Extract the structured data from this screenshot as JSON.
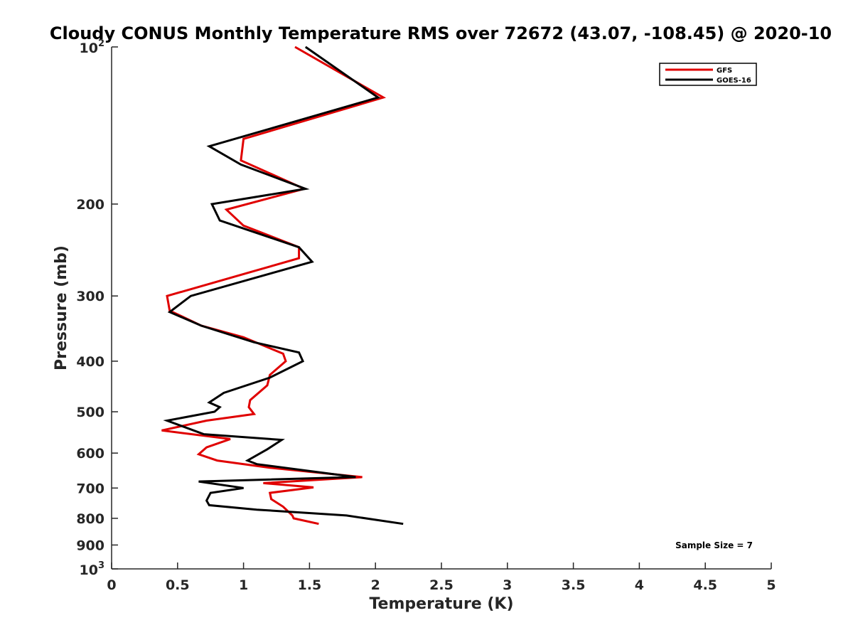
{
  "chart_data": {
    "type": "line",
    "title": "Cloudy CONUS Monthly Temperature RMS over 72672 (43.07, -108.45) @ 2020-10",
    "xlabel": "Temperature (K)",
    "ylabel": "Pressure (mb)",
    "xlim": [
      0,
      5
    ],
    "ylim": [
      100,
      1000
    ],
    "y_scale": "log",
    "y_reversed": true,
    "x_ticks": [
      "0",
      "0.5",
      "1",
      "1.5",
      "2",
      "2.5",
      "3",
      "3.5",
      "4",
      "4.5",
      "5"
    ],
    "x_tick_values": [
      0,
      0.5,
      1,
      1.5,
      2,
      2.5,
      3,
      3.5,
      4,
      4.5,
      5
    ],
    "y_ticks_plain": [
      {
        "label": "200",
        "value": 200
      },
      {
        "label": "300",
        "value": 300
      },
      {
        "label": "400",
        "value": 400
      },
      {
        "label": "500",
        "value": 500
      },
      {
        "label": "600",
        "value": 600
      },
      {
        "label": "700",
        "value": 700
      },
      {
        "label": "800",
        "value": 800
      },
      {
        "label": "900",
        "value": 900
      }
    ],
    "y_ticks_power": [
      {
        "base": "10",
        "exp": "2",
        "value": 100
      },
      {
        "base": "10",
        "exp": "3",
        "value": 1000
      }
    ],
    "grid": false,
    "legend_position": "top-right",
    "annotation": "Sample Size = 7",
    "series": [
      {
        "name": "GFS",
        "color": "#e00000",
        "points": [
          [
            1.39,
            100
          ],
          [
            2.06,
            125
          ],
          [
            1.0,
            150
          ],
          [
            0.98,
            165
          ],
          [
            1.46,
            187
          ],
          [
            0.87,
            205
          ],
          [
            1.0,
            220
          ],
          [
            1.42,
            242
          ],
          [
            1.42,
            254
          ],
          [
            0.42,
            300
          ],
          [
            0.44,
            320
          ],
          [
            0.68,
            342
          ],
          [
            1.0,
            360
          ],
          [
            1.3,
            387
          ],
          [
            1.32,
            400
          ],
          [
            1.2,
            425
          ],
          [
            1.18,
            445
          ],
          [
            1.05,
            475
          ],
          [
            1.04,
            490
          ],
          [
            1.08,
            505
          ],
          [
            0.72,
            520
          ],
          [
            0.38,
            543
          ],
          [
            0.9,
            564
          ],
          [
            0.72,
            585
          ],
          [
            0.66,
            603
          ],
          [
            0.8,
            620
          ],
          [
            1.2,
            640
          ],
          [
            1.9,
            667
          ],
          [
            1.15,
            685
          ],
          [
            1.53,
            698
          ],
          [
            1.2,
            715
          ],
          [
            1.21,
            735
          ],
          [
            1.3,
            760
          ],
          [
            1.37,
            790
          ],
          [
            1.38,
            800
          ],
          [
            1.57,
            820
          ]
        ]
      },
      {
        "name": "GOES-16",
        "color": "#000000",
        "points": [
          [
            1.47,
            100
          ],
          [
            2.02,
            125
          ],
          [
            0.74,
            155
          ],
          [
            0.98,
            168
          ],
          [
            1.47,
            187
          ],
          [
            0.76,
            200
          ],
          [
            0.82,
            215
          ],
          [
            1.42,
            242
          ],
          [
            1.52,
            258
          ],
          [
            0.6,
            300
          ],
          [
            0.44,
            322
          ],
          [
            0.68,
            342
          ],
          [
            1.08,
            368
          ],
          [
            1.42,
            385
          ],
          [
            1.45,
            400
          ],
          [
            1.2,
            430
          ],
          [
            0.85,
            460
          ],
          [
            0.74,
            480
          ],
          [
            0.82,
            490
          ],
          [
            0.78,
            500
          ],
          [
            0.42,
            520
          ],
          [
            0.7,
            552
          ],
          [
            1.29,
            566
          ],
          [
            1.18,
            590
          ],
          [
            1.03,
            620
          ],
          [
            1.1,
            630
          ],
          [
            1.85,
            667
          ],
          [
            0.66,
            680
          ],
          [
            1.0,
            700
          ],
          [
            0.75,
            715
          ],
          [
            0.72,
            740
          ],
          [
            0.74,
            755
          ],
          [
            1.1,
            770
          ],
          [
            1.78,
            790
          ],
          [
            2.21,
            820
          ]
        ]
      }
    ]
  }
}
